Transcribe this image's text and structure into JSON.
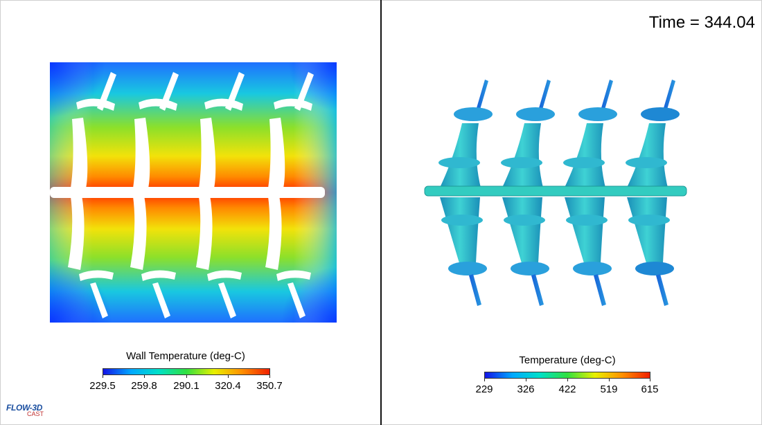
{
  "time_label": "Time = 344.04",
  "left_panel": {
    "legend_title": "Wall Temperature (deg-C)",
    "ticks": [
      "229.5",
      "259.8",
      "290.1",
      "320.4",
      "350.7"
    ]
  },
  "right_panel": {
    "legend_title": "Temperature (deg-C)",
    "ticks": [
      "229",
      "326",
      "422",
      "519",
      "615"
    ]
  },
  "logo": {
    "main": "FLOW-3D",
    "sub": "CAST"
  },
  "colors": {
    "cold": "#0000e0",
    "hot": "#e01010",
    "casting": "#2cc2c8"
  }
}
